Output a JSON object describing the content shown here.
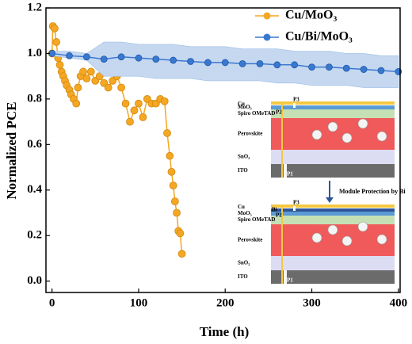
{
  "chart_data": {
    "type": "line",
    "x_label": "Time (h)",
    "y_label": "Normalized PCE",
    "xlim": [
      -7,
      402
    ],
    "xticks": [
      0,
      100,
      200,
      300,
      400
    ],
    "ylim": [
      -0.05,
      1.2
    ],
    "yticks": [
      {
        "value": 0,
        "label": "0.0"
      },
      0.2,
      0.4,
      0.6,
      0.8,
      {
        "value": 1,
        "label": "1.0"
      },
      1.2
    ],
    "legend": "top-right",
    "series": [
      {
        "name": "Cu/MoO₃",
        "color": "#f5a623",
        "x": [
          0,
          1,
          3,
          5,
          7,
          9,
          11,
          13,
          15,
          17,
          20,
          22,
          25,
          28,
          30,
          33,
          36,
          40,
          45,
          50,
          55,
          60,
          65,
          70,
          75,
          80,
          85,
          90,
          95,
          100,
          105,
          110,
          115,
          120,
          125,
          130,
          133,
          136,
          138,
          140,
          142,
          144,
          146,
          148,
          150
        ],
        "values": [
          1.0,
          1.12,
          1.11,
          1.05,
          0.98,
          0.95,
          0.92,
          0.9,
          0.88,
          0.86,
          0.84,
          0.82,
          0.8,
          0.78,
          0.85,
          0.9,
          0.92,
          0.89,
          0.92,
          0.88,
          0.9,
          0.87,
          0.85,
          0.88,
          0.9,
          0.85,
          0.78,
          0.7,
          0.75,
          0.78,
          0.72,
          0.8,
          0.78,
          0.78,
          0.8,
          0.79,
          0.65,
          0.55,
          0.48,
          0.42,
          0.35,
          0.3,
          0.22,
          0.21,
          0.12
        ]
      },
      {
        "name": "Cu/Bi/MoO₃",
        "color": "#3a78d0",
        "band_color": "#c5d8f0",
        "x": [
          0,
          20,
          40,
          60,
          80,
          100,
          120,
          140,
          160,
          180,
          200,
          220,
          240,
          260,
          280,
          300,
          320,
          340,
          360,
          380,
          400
        ],
        "values": [
          1.0,
          0.99,
          0.985,
          0.975,
          0.985,
          0.98,
          0.975,
          0.97,
          0.965,
          0.96,
          0.96,
          0.955,
          0.955,
          0.95,
          0.95,
          0.94,
          0.94,
          0.935,
          0.93,
          0.925,
          0.92
        ],
        "upper": [
          1.01,
          1.01,
          1.0,
          1.05,
          1.05,
          1.04,
          1.04,
          1.04,
          1.03,
          1.03,
          1.03,
          1.02,
          1.02,
          1.02,
          1.01,
          1.01,
          1.01,
          1.0,
          1.0,
          0.99,
          0.99
        ],
        "lower": [
          0.99,
          0.98,
          0.97,
          0.9,
          0.9,
          0.9,
          0.89,
          0.89,
          0.89,
          0.88,
          0.88,
          0.88,
          0.88,
          0.87,
          0.87,
          0.86,
          0.86,
          0.86,
          0.85,
          0.85,
          0.85
        ]
      }
    ]
  },
  "inset": {
    "top": {
      "layers": [
        "Cu",
        "MoO₃",
        "Spiro OMeTAD",
        "Perovskite",
        "SnO₂",
        "ITO"
      ],
      "scribes": [
        "P1",
        "P2",
        "P3"
      ]
    },
    "arrow_label": "Module Protection by Bi",
    "bottom": {
      "layers": [
        "Cu",
        "Bi",
        "MoO₃",
        "Spiro OMeTAD",
        "Perovskite",
        "SnO₂",
        "ITO"
      ],
      "scribes": [
        "P1",
        "P2",
        "P3"
      ]
    }
  }
}
